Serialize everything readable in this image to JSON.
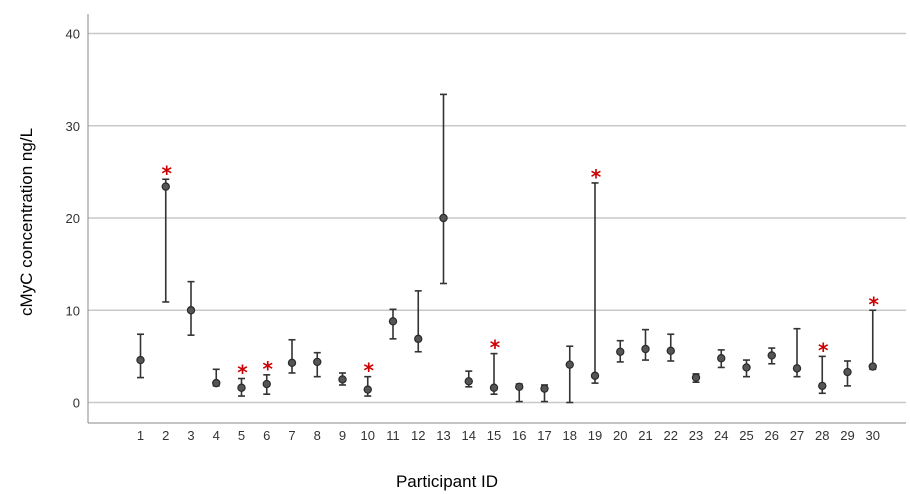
{
  "chart_data": {
    "type": "scatter",
    "subtype": "error-bar",
    "title": "",
    "xlabel": "Participant ID",
    "ylabel": "cMyC concentration ng/L",
    "ylim": [
      0,
      40
    ],
    "yticks": [
      0,
      10,
      20,
      30,
      40
    ],
    "grid": "horizontal",
    "categories": [
      "1",
      "2",
      "3",
      "4",
      "5",
      "6",
      "7",
      "8",
      "9",
      "10",
      "11",
      "12",
      "13",
      "14",
      "15",
      "16",
      "17",
      "18",
      "19",
      "20",
      "21",
      "22",
      "23",
      "24",
      "25",
      "26",
      "27",
      "28",
      "29",
      "30"
    ],
    "means": [
      4.6,
      23.4,
      10.0,
      2.1,
      1.6,
      2.0,
      4.3,
      4.4,
      2.5,
      1.4,
      8.8,
      6.9,
      20.0,
      2.3,
      1.6,
      1.7,
      1.5,
      4.1,
      2.9,
      5.5,
      5.8,
      5.6,
      2.7,
      4.8,
      3.8,
      5.1,
      3.7,
      1.8,
      3.3,
      3.9
    ],
    "lower": [
      2.7,
      10.9,
      7.3,
      1.8,
      0.7,
      0.9,
      3.2,
      2.8,
      1.9,
      0.7,
      6.9,
      5.5,
      12.9,
      1.7,
      0.9,
      0.1,
      0.1,
      0.0,
      2.1,
      4.4,
      4.6,
      4.5,
      2.2,
      3.8,
      2.8,
      4.2,
      2.8,
      1.0,
      1.8,
      3.6
    ],
    "upper": [
      7.4,
      24.2,
      13.1,
      3.6,
      2.6,
      3.0,
      6.8,
      5.4,
      3.2,
      2.8,
      10.1,
      12.1,
      33.4,
      3.4,
      5.3,
      2.0,
      1.9,
      6.1,
      23.8,
      6.7,
      7.9,
      7.4,
      3.1,
      5.7,
      4.6,
      5.9,
      8.0,
      5.0,
      4.5,
      10.0
    ],
    "flagged": [
      "2",
      "5",
      "6",
      "10",
      "15",
      "19",
      "28",
      "30"
    ],
    "marker_symbol": "*",
    "colors": {
      "points": "#555555",
      "bars": "#333333",
      "flag": "#cc0000",
      "grid": "#c8c8c8"
    }
  }
}
